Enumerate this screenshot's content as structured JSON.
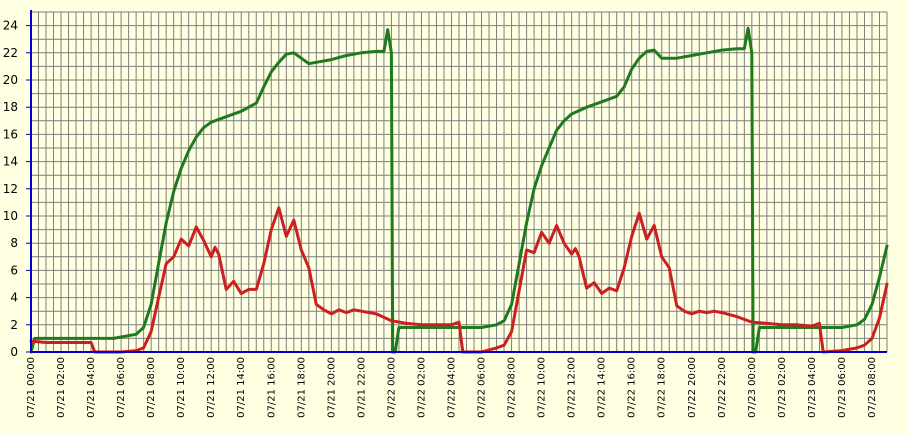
{
  "chart_data": {
    "type": "line",
    "title": "",
    "xlabel": "",
    "ylabel": "",
    "ylim": [
      0,
      25
    ],
    "xlim": [
      "07/21 00:00",
      "07/23 09:00"
    ],
    "grid": true,
    "background": "#ffffe1",
    "grid_color": "#7f7f7f",
    "axis_color": "#0000cc",
    "yticks": [
      0,
      2,
      4,
      6,
      8,
      10,
      12,
      14,
      16,
      18,
      20,
      22,
      24
    ],
    "xtick_labels": [
      "07/21 00:00",
      "07/21 02:00",
      "07/21 04:00",
      "07/21 06:00",
      "07/21 08:00",
      "07/21 10:00",
      "07/21 12:00",
      "07/21 14:00",
      "07/21 16:00",
      "07/21 18:00",
      "07/21 20:00",
      "07/21 22:00",
      "07/22 00:00",
      "07/22 02:00",
      "07/22 04:00",
      "07/22 06:00",
      "07/22 08:00",
      "07/22 10:00",
      "07/22 12:00",
      "07/22 14:00",
      "07/22 16:00",
      "07/22 18:00",
      "07/22 20:00",
      "07/22 22:00",
      "07/23 00:00",
      "07/23 02:00",
      "07/23 04:00",
      "07/23 06:00",
      "07/23 08:00"
    ],
    "series": [
      {
        "color": "#1f7a1f",
        "points": [
          [
            "07/21 00:00",
            0.0
          ],
          [
            "07/21 00:15",
            1.0
          ],
          [
            "07/21 02:00",
            1.0
          ],
          [
            "07/21 04:00",
            1.0
          ],
          [
            "07/21 05:30",
            1.0
          ],
          [
            "07/21 06:00",
            1.1
          ],
          [
            "07/21 07:00",
            1.3
          ],
          [
            "07/21 07:30",
            1.8
          ],
          [
            "07/21 08:00",
            3.5
          ],
          [
            "07/21 08:30",
            6.5
          ],
          [
            "07/21 09:00",
            9.5
          ],
          [
            "07/21 09:30",
            11.8
          ],
          [
            "07/21 10:00",
            13.5
          ],
          [
            "07/21 10:30",
            14.8
          ],
          [
            "07/21 11:00",
            15.8
          ],
          [
            "07/21 11:30",
            16.5
          ],
          [
            "07/21 12:00",
            16.9
          ],
          [
            "07/21 13:00",
            17.3
          ],
          [
            "07/21 14:00",
            17.7
          ],
          [
            "07/21 15:00",
            18.3
          ],
          [
            "07/21 15:30",
            19.5
          ],
          [
            "07/21 16:00",
            20.6
          ],
          [
            "07/21 16:30",
            21.3
          ],
          [
            "07/21 17:00",
            21.9
          ],
          [
            "07/21 17:30",
            22.0
          ],
          [
            "07/21 18:00",
            21.6
          ],
          [
            "07/21 18:30",
            21.2
          ],
          [
            "07/21 19:00",
            21.3
          ],
          [
            "07/21 20:00",
            21.5
          ],
          [
            "07/21 21:00",
            21.8
          ],
          [
            "07/21 22:00",
            22.0
          ],
          [
            "07/21 23:00",
            22.1
          ],
          [
            "07/21 23:30",
            22.1
          ],
          [
            "07/21 23:45",
            23.7
          ],
          [
            "07/22 00:00",
            22.0
          ],
          [
            "07/22 00:05",
            0.0
          ],
          [
            "07/22 00:15",
            0.0
          ],
          [
            "07/22 00:30",
            1.8
          ],
          [
            "07/22 02:00",
            1.8
          ],
          [
            "07/22 04:00",
            1.8
          ],
          [
            "07/22 06:00",
            1.8
          ],
          [
            "07/22 07:00",
            2.0
          ],
          [
            "07/22 07:30",
            2.3
          ],
          [
            "07/22 08:00",
            3.5
          ],
          [
            "07/22 08:30",
            6.5
          ],
          [
            "07/22 09:00",
            9.5
          ],
          [
            "07/22 09:30",
            12.0
          ],
          [
            "07/22 10:00",
            13.7
          ],
          [
            "07/22 10:30",
            15.0
          ],
          [
            "07/22 11:00",
            16.3
          ],
          [
            "07/22 11:30",
            17.0
          ],
          [
            "07/22 12:00",
            17.5
          ],
          [
            "07/22 13:00",
            18.0
          ],
          [
            "07/22 14:00",
            18.4
          ],
          [
            "07/22 15:00",
            18.8
          ],
          [
            "07/22 15:30",
            19.5
          ],
          [
            "07/22 16:00",
            20.8
          ],
          [
            "07/22 16:30",
            21.6
          ],
          [
            "07/22 17:00",
            22.1
          ],
          [
            "07/22 17:30",
            22.2
          ],
          [
            "07/22 18:00",
            21.6
          ],
          [
            "07/22 19:00",
            21.6
          ],
          [
            "07/22 20:00",
            21.8
          ],
          [
            "07/22 21:00",
            22.0
          ],
          [
            "07/22 22:00",
            22.2
          ],
          [
            "07/22 23:00",
            22.3
          ],
          [
            "07/22 23:30",
            22.3
          ],
          [
            "07/22 23:45",
            23.8
          ],
          [
            "07/23 00:00",
            22.0
          ],
          [
            "07/23 00:05",
            0.0
          ],
          [
            "07/23 00:15",
            0.0
          ],
          [
            "07/23 00:30",
            1.8
          ],
          [
            "07/23 02:00",
            1.8
          ],
          [
            "07/23 04:00",
            1.8
          ],
          [
            "07/23 06:00",
            1.8
          ],
          [
            "07/23 07:00",
            2.0
          ],
          [
            "07/23 07:30",
            2.4
          ],
          [
            "07/23 08:00",
            3.5
          ],
          [
            "07/23 08:30",
            5.5
          ],
          [
            "07/23 09:00",
            7.8
          ]
        ]
      },
      {
        "color": "#cc1f1f",
        "points": [
          [
            "07/21 00:00",
            0.8
          ],
          [
            "07/21 01:00",
            0.7
          ],
          [
            "07/21 02:00",
            0.7
          ],
          [
            "07/21 03:00",
            0.7
          ],
          [
            "07/21 04:00",
            0.7
          ],
          [
            "07/21 04:15",
            0.0
          ],
          [
            "07/21 06:00",
            0.0
          ],
          [
            "07/21 07:00",
            0.1
          ],
          [
            "07/21 07:30",
            0.3
          ],
          [
            "07/21 08:00",
            1.5
          ],
          [
            "07/21 08:30",
            4.0
          ],
          [
            "07/21 09:00",
            6.5
          ],
          [
            "07/21 09:30",
            7.0
          ],
          [
            "07/21 10:00",
            8.3
          ],
          [
            "07/21 10:30",
            7.8
          ],
          [
            "07/21 11:00",
            9.2
          ],
          [
            "07/21 11:30",
            8.2
          ],
          [
            "07/21 12:00",
            7.0
          ],
          [
            "07/21 12:15",
            7.7
          ],
          [
            "07/21 12:30",
            7.2
          ],
          [
            "07/21 13:00",
            4.6
          ],
          [
            "07/21 13:30",
            5.2
          ],
          [
            "07/21 14:00",
            4.3
          ],
          [
            "07/21 14:30",
            4.6
          ],
          [
            "07/21 15:00",
            4.6
          ],
          [
            "07/21 15:30",
            6.5
          ],
          [
            "07/21 16:00",
            9.0
          ],
          [
            "07/21 16:30",
            10.6
          ],
          [
            "07/21 17:00",
            8.5
          ],
          [
            "07/21 17:30",
            9.7
          ],
          [
            "07/21 18:00",
            7.5
          ],
          [
            "07/21 18:30",
            6.2
          ],
          [
            "07/21 19:00",
            3.5
          ],
          [
            "07/21 19:30",
            3.1
          ],
          [
            "07/21 20:00",
            2.8
          ],
          [
            "07/21 20:30",
            3.1
          ],
          [
            "07/21 21:00",
            2.9
          ],
          [
            "07/21 21:30",
            3.1
          ],
          [
            "07/21 22:00",
            3.0
          ],
          [
            "07/21 23:00",
            2.8
          ],
          [
            "07/22 00:00",
            2.3
          ],
          [
            "07/22 01:00",
            2.1
          ],
          [
            "07/22 02:00",
            2.0
          ],
          [
            "07/22 03:00",
            2.0
          ],
          [
            "07/22 04:00",
            2.0
          ],
          [
            "07/22 04:30",
            2.2
          ],
          [
            "07/22 04:45",
            0.0
          ],
          [
            "07/22 06:00",
            0.0
          ],
          [
            "07/22 07:00",
            0.3
          ],
          [
            "07/22 07:30",
            0.5
          ],
          [
            "07/22 08:00",
            1.5
          ],
          [
            "07/22 08:30",
            4.5
          ],
          [
            "07/22 09:00",
            7.5
          ],
          [
            "07/22 09:30",
            7.3
          ],
          [
            "07/22 10:00",
            8.8
          ],
          [
            "07/22 10:30",
            8.0
          ],
          [
            "07/22 11:00",
            9.3
          ],
          [
            "07/22 11:30",
            8.0
          ],
          [
            "07/22 12:00",
            7.2
          ],
          [
            "07/22 12:15",
            7.6
          ],
          [
            "07/22 12:30",
            7.0
          ],
          [
            "07/22 13:00",
            4.7
          ],
          [
            "07/22 13:30",
            5.1
          ],
          [
            "07/22 14:00",
            4.3
          ],
          [
            "07/22 14:30",
            4.7
          ],
          [
            "07/22 15:00",
            4.5
          ],
          [
            "07/22 15:30",
            6.2
          ],
          [
            "07/22 16:00",
            8.5
          ],
          [
            "07/22 16:30",
            10.2
          ],
          [
            "07/22 17:00",
            8.3
          ],
          [
            "07/22 17:30",
            9.3
          ],
          [
            "07/22 18:00",
            7.0
          ],
          [
            "07/22 18:30",
            6.2
          ],
          [
            "07/22 19:00",
            3.4
          ],
          [
            "07/22 19:30",
            3.0
          ],
          [
            "07/22 20:00",
            2.8
          ],
          [
            "07/22 20:30",
            3.0
          ],
          [
            "07/22 21:00",
            2.9
          ],
          [
            "07/22 21:30",
            3.0
          ],
          [
            "07/22 22:00",
            2.9
          ],
          [
            "07/22 23:00",
            2.6
          ],
          [
            "07/23 00:00",
            2.2
          ],
          [
            "07/23 01:00",
            2.1
          ],
          [
            "07/23 02:00",
            2.0
          ],
          [
            "07/23 03:00",
            2.0
          ],
          [
            "07/23 04:00",
            1.9
          ],
          [
            "07/23 04:30",
            2.1
          ],
          [
            "07/23 04:45",
            0.0
          ],
          [
            "07/23 06:00",
            0.1
          ],
          [
            "07/23 07:00",
            0.3
          ],
          [
            "07/23 07:30",
            0.5
          ],
          [
            "07/23 08:00",
            1.0
          ],
          [
            "07/23 08:30",
            2.5
          ],
          [
            "07/23 09:00",
            5.0
          ]
        ]
      }
    ]
  }
}
